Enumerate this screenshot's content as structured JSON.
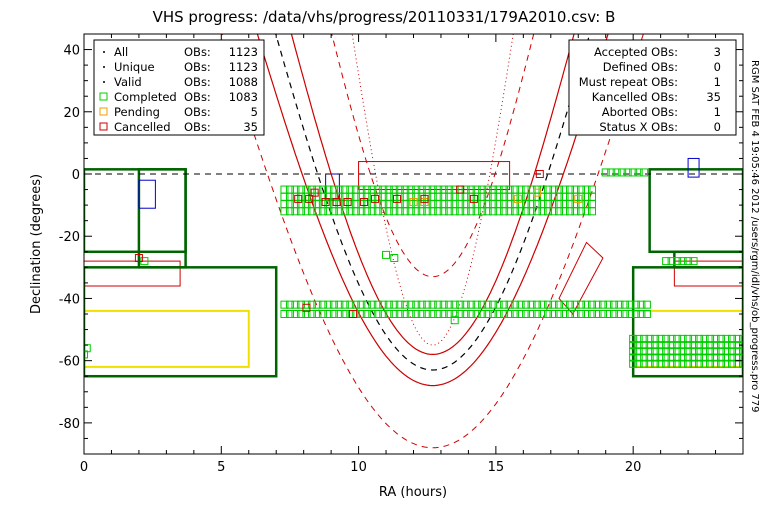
{
  "chart_data": {
    "type": "scatter",
    "title": "VHS progress: /data/vhs/progress/20110331/179A2010.csv: B",
    "xlabel": "RA (hours)",
    "ylabel": "Declination (degrees)",
    "xlim": [
      0,
      24
    ],
    "ylim": [
      -90,
      45
    ],
    "x_ticks": [
      "0",
      "5",
      "10",
      "15",
      "20"
    ],
    "y_ticks": [
      "40",
      "20",
      "0",
      "-20",
      "-40",
      "-60",
      "-80"
    ],
    "x_tick_values": [
      0,
      5,
      10,
      15,
      20
    ],
    "y_tick_values": [
      40,
      20,
      0,
      -20,
      -40,
      -60,
      -80
    ],
    "grid": false,
    "side_text": "RGM SAT FEB  4 19:05:46 2012 /users/rgm/idl/vhs/ob_progress.pro 779",
    "legend_left": [
      {
        "symbol": "dot",
        "color": "#000000",
        "label": "All",
        "key": "OBs:",
        "value": "1123"
      },
      {
        "symbol": "dot",
        "color": "#000000",
        "label": "Unique",
        "key": "OBs:",
        "value": "1123"
      },
      {
        "symbol": "dot",
        "color": "#000000",
        "label": "Valid",
        "key": "OBs:",
        "value": "1088"
      },
      {
        "symbol": "square",
        "color": "#00cc00",
        "label": "Completed",
        "key": "OBs:",
        "value": "1083"
      },
      {
        "symbol": "square",
        "color": "#e8a000",
        "label": "Pending",
        "key": "OBs:",
        "value": "5"
      },
      {
        "symbol": "square",
        "color": "#cc0000",
        "label": "Cancelled",
        "key": "OBs:",
        "value": "35"
      }
    ],
    "legend_right": [
      {
        "label": "Accepted OBs:",
        "value": "3"
      },
      {
        "label": "Defined OBs:",
        "value": "0"
      },
      {
        "label": "Must repeat OBs:",
        "value": "1"
      },
      {
        "label": "Kancelled OBs:",
        "value": "35"
      },
      {
        "label": "Aborted OBs:",
        "value": "1"
      },
      {
        "label": "Status X OBs:",
        "value": "0"
      }
    ],
    "colors": {
      "completed": "#00cc00",
      "pending": "#e8a000",
      "cancelled": "#cc0000",
      "survey_box": "#006400",
      "yellow_box": "#f0e000",
      "blue_box": "#0000cc",
      "galactic": "#000000",
      "galactic_band": "#cc0000"
    },
    "survey_regions": [
      {
        "ra": [
          0,
          3.7
        ],
        "dec": [
          -25,
          1.5
        ]
      },
      {
        "ra": [
          2,
          3.7
        ],
        "dec": [
          -30,
          1.5
        ]
      },
      {
        "ra": [
          0,
          7
        ],
        "dec": [
          -65,
          -30
        ]
      },
      {
        "ra": [
          20.6,
          24
        ],
        "dec": [
          -25,
          1.5
        ]
      },
      {
        "ra": [
          21.5,
          24
        ],
        "dec": [
          -30,
          -25
        ]
      },
      {
        "ra": [
          20,
          24
        ],
        "dec": [
          -65,
          -30
        ]
      }
    ],
    "yellow_regions": [
      {
        "ra": [
          0,
          6
        ],
        "dec": [
          -62,
          -44
        ]
      },
      {
        "ra": [
          20,
          24
        ],
        "dec": [
          -62,
          -44
        ]
      }
    ],
    "blue_regions": [
      {
        "ra": [
          2,
          2.6
        ],
        "dec": [
          -11,
          -2
        ]
      },
      {
        "ra": [
          8.8,
          9.3
        ],
        "dec": [
          -8,
          0
        ]
      },
      {
        "ra": [
          22,
          22.4
        ],
        "dec": [
          -1,
          5
        ]
      }
    ],
    "red_regions": [
      {
        "ra": [
          10,
          15.5
        ],
        "dec": [
          -5,
          4
        ]
      },
      {
        "ra": [
          0,
          3.5
        ],
        "dec": [
          -36,
          -28
        ]
      },
      {
        "ra": [
          21.5,
          24
        ],
        "dec": [
          -36,
          -28
        ]
      }
    ],
    "completed_strips": [
      {
        "ra": [
          7.3,
          18.5
        ],
        "dec": [
          -12,
          -5
        ],
        "rows": 4
      },
      {
        "ra": [
          19,
          20.5
        ],
        "dec": [
          0.5,
          -0.5
        ],
        "rows": 1
      },
      {
        "ra": [
          7.3,
          20.5
        ],
        "dec": [
          -45,
          -42
        ],
        "rows": 2
      },
      {
        "ra": [
          20,
          24
        ],
        "dec": [
          -61,
          -53
        ],
        "rows": 5
      },
      {
        "ra": [
          21.2,
          22.3
        ],
        "dec": [
          -28,
          -26
        ],
        "rows": 1
      }
    ],
    "completed_points": [
      {
        "ra": 11,
        "dec": -26
      },
      {
        "ra": 11.3,
        "dec": -27
      },
      {
        "ra": 13.5,
        "dec": -47
      },
      {
        "ra": 0.1,
        "dec": -56
      },
      {
        "ra": 0,
        "dec": -58
      },
      {
        "ra": 2.2,
        "dec": -28
      }
    ],
    "cancelled_points": [
      {
        "ra": 7.8,
        "dec": -8
      },
      {
        "ra": 8.2,
        "dec": -8
      },
      {
        "ra": 8.8,
        "dec": -9
      },
      {
        "ra": 9.2,
        "dec": -9
      },
      {
        "ra": 9.6,
        "dec": -9
      },
      {
        "ra": 10.2,
        "dec": -9
      },
      {
        "ra": 10.6,
        "dec": -8
      },
      {
        "ra": 8.4,
        "dec": -6
      },
      {
        "ra": 13.7,
        "dec": -5
      },
      {
        "ra": 16.6,
        "dec": 0
      },
      {
        "ra": 9.8,
        "dec": -45
      },
      {
        "ra": 8.1,
        "dec": -43
      },
      {
        "ra": 2.0,
        "dec": -27
      },
      {
        "ra": 11.4,
        "dec": -8
      },
      {
        "ra": 12.4,
        "dec": -8
      },
      {
        "ra": 14.2,
        "dec": -8
      }
    ],
    "pending_points": [
      {
        "ra": 12,
        "dec": -9
      },
      {
        "ra": 12.4,
        "dec": -9
      },
      {
        "ra": 15.8,
        "dec": -8
      },
      {
        "ra": 16.5,
        "dec": -6
      },
      {
        "ra": 18,
        "dec": -8
      }
    ]
  }
}
